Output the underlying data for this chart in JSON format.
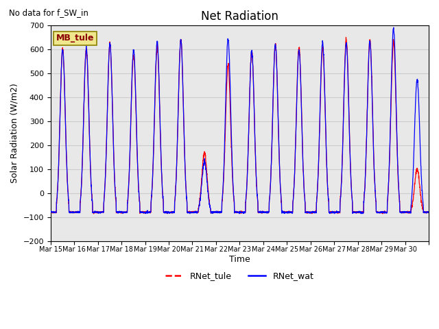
{
  "title": "Net Radiation",
  "xlabel": "Time",
  "ylabel": "Solar Radiation (W/m2)",
  "annotation_text": "No data for f_SW_in",
  "legend_box_text": "MB_tule",
  "ylim": [
    -200,
    700
  ],
  "yticks": [
    -200,
    -100,
    0,
    100,
    200,
    300,
    400,
    500,
    600,
    700
  ],
  "grid_color": "#cccccc",
  "plot_bg_color": "#e8e8e8",
  "fig_bg_color": "#ffffff",
  "line1_color": "red",
  "line2_color": "blue",
  "line1_label": "RNet_tule",
  "line2_label": "RNet_wat",
  "date_labels": [
    "Mar 15",
    "Mar 16",
    "Mar 17",
    "Mar 18",
    "Mar 19",
    "Mar 20",
    "Mar 21",
    "Mar 22",
    "Mar 23",
    "Mar 24",
    "Mar 25",
    "Mar 26",
    "Mar 27",
    "Mar 28",
    "Mar 29",
    "Mar 30"
  ],
  "night_val": -80,
  "day_peaks_tule": [
    600,
    600,
    625,
    580,
    610,
    640,
    170,
    535,
    590,
    620,
    610,
    605,
    645,
    640,
    635,
    100
  ],
  "day_peaks_wat": [
    600,
    600,
    625,
    598,
    628,
    640,
    130,
    643,
    590,
    620,
    600,
    628,
    625,
    632,
    688,
    475
  ]
}
